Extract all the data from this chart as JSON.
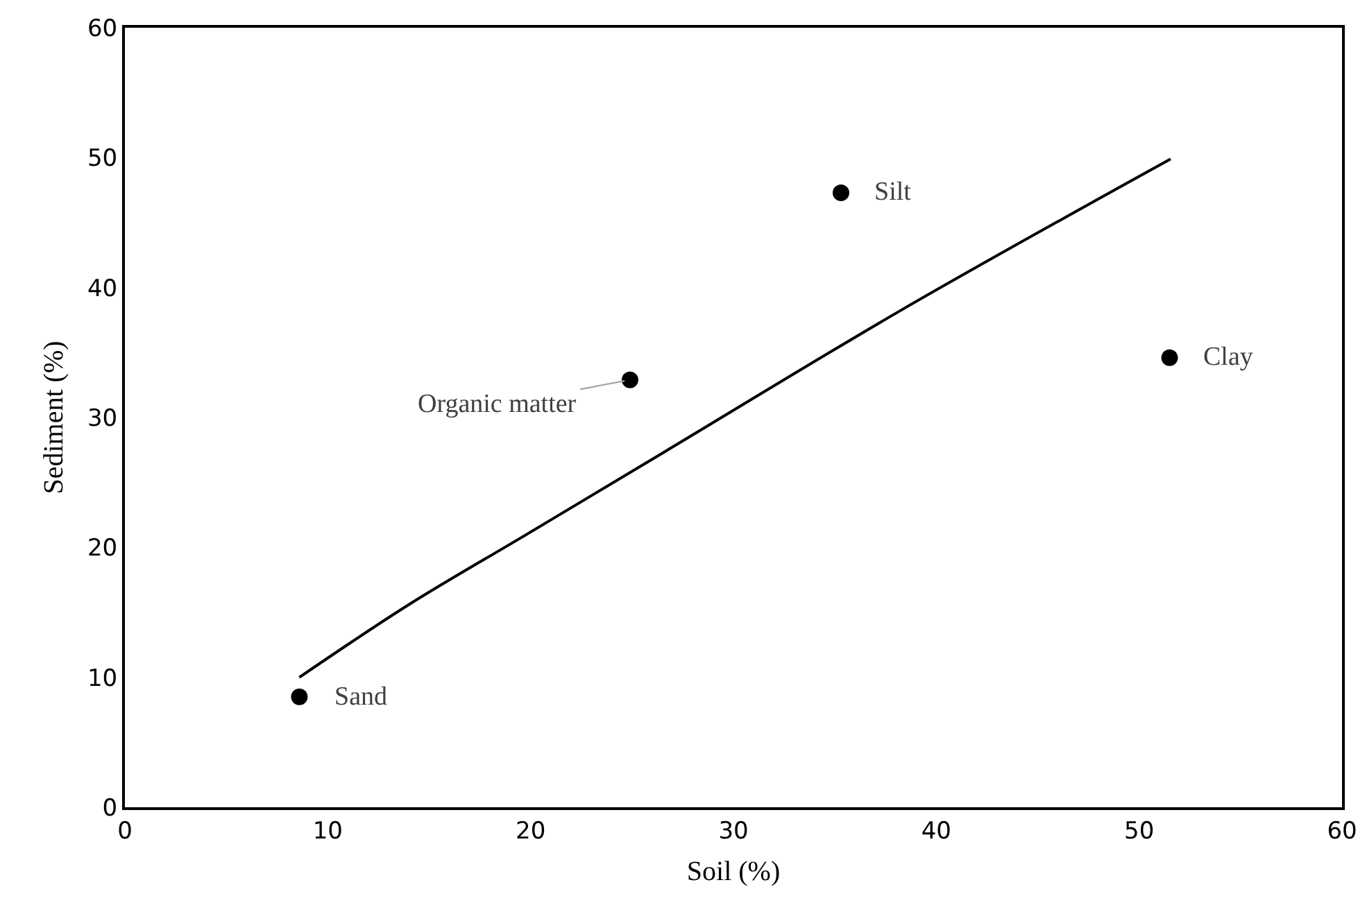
{
  "chart_data": {
    "type": "scatter",
    "xlabel": "Soil (%)",
    "ylabel": "Sediment (%)",
    "series": [
      {
        "color": "#000000",
        "marker": "circle",
        "x": [
          8.6,
          24.9,
          35.3,
          51.5
        ],
        "values": [
          8.5,
          32.9,
          47.3,
          34.6
        ]
      },
      {
        "type": "line",
        "color": "#000000",
        "marker": "none",
        "line_style": "solid",
        "x": [
          8.6,
          14.0,
          19.8,
          26.65,
          38.2,
          51.55
        ],
        "values": [
          10.0,
          15.6,
          21.0,
          27.4,
          38.2,
          49.9
        ]
      }
    ],
    "annotations": [
      {
        "text": "Sand",
        "x": 8.6,
        "y": 8.5
      },
      {
        "text": "Organic matter",
        "x": 24.9,
        "y": 32.9
      },
      {
        "text": "Silt",
        "x": 35.3,
        "y": 47.3
      },
      {
        "text": "Clay",
        "x": 51.5,
        "y": 34.6
      }
    ],
    "xlim": [
      0,
      60
    ],
    "xticks": [
      0,
      10,
      20,
      30,
      40,
      50,
      60
    ],
    "ylim": [
      0,
      60
    ],
    "yticks": [
      0,
      10,
      20,
      30,
      40,
      50,
      60
    ],
    "grid": false
  }
}
